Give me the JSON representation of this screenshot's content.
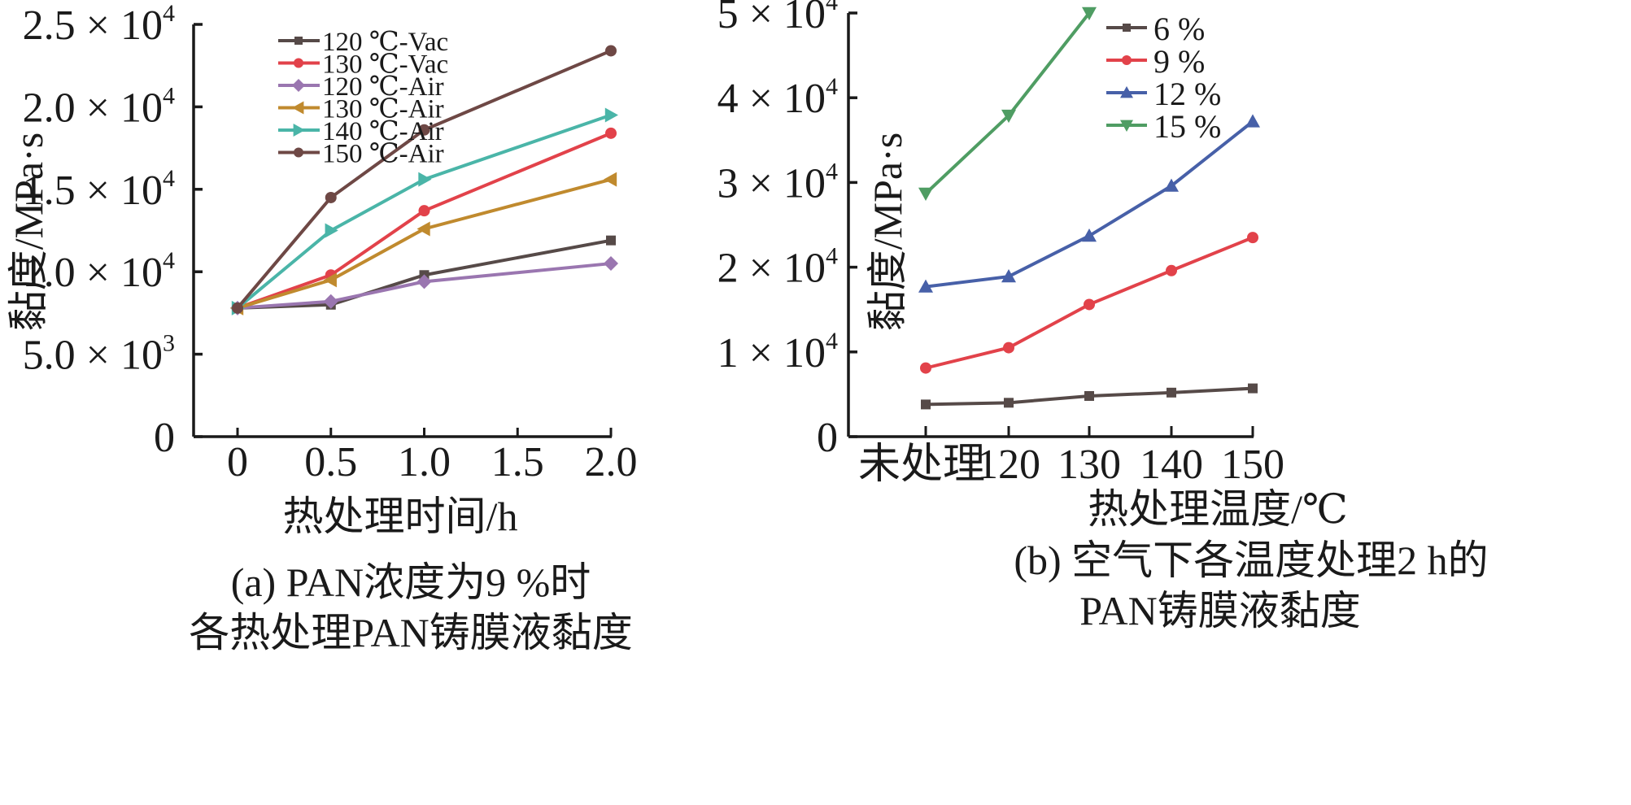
{
  "chart_data": [
    {
      "type": "line",
      "panel": "a",
      "xlabel": "热处理时间/h",
      "ylabel": "黏度/MPa·s",
      "caption": [
        "(a) PAN浓度为9 %时",
        "各热处理PAN铸膜液黏度"
      ],
      "xlim": [
        -0.12,
        2.0
      ],
      "ylim": [
        0,
        25000
      ],
      "x_ticks": [
        0,
        0.5,
        1.0,
        1.5,
        2.0
      ],
      "x_tick_labels": [
        "0",
        "0.5",
        "1.0",
        "1.5",
        "2.0"
      ],
      "y_ticks": [
        0,
        5000,
        10000,
        15000,
        20000,
        25000
      ],
      "y_tick_labels": [
        {
          "mant": "0",
          "exp": ""
        },
        {
          "mant": "5.0 × 10",
          "exp": "3"
        },
        {
          "mant": "1.0 × 10",
          "exp": "4"
        },
        {
          "mant": "1.5 × 10",
          "exp": "4"
        },
        {
          "mant": "2.0 × 10",
          "exp": "4"
        },
        {
          "mant": "2.5 × 10",
          "exp": "4"
        }
      ],
      "grid": false,
      "legend_position": "top-left",
      "x": [
        0,
        0.5,
        1.0,
        2.0
      ],
      "series": [
        {
          "name": "120 ℃-Vac",
          "color": "#564a48",
          "marker": "square",
          "values": [
            7800,
            8000,
            9800,
            11900
          ]
        },
        {
          "name": "130 ℃-Vac",
          "color": "#e2424a",
          "marker": "circle",
          "values": [
            7800,
            9800,
            13700,
            18400
          ]
        },
        {
          "name": "120 ℃-Air",
          "color": "#9a76b0",
          "marker": "diamond",
          "values": [
            7800,
            8200,
            9400,
            10500
          ]
        },
        {
          "name": "130 ℃-Air",
          "color": "#c08a2e",
          "marker": "tri-left",
          "values": [
            7800,
            9500,
            12600,
            15600
          ]
        },
        {
          "name": "140 ℃-Air",
          "color": "#4ab5a8",
          "marker": "tri-right",
          "values": [
            7800,
            12500,
            15600,
            19500
          ]
        },
        {
          "name": "150 ℃-Air",
          "color": "#6e4845",
          "marker": "circle",
          "values": [
            7800,
            14500,
            18600,
            23400
          ]
        }
      ]
    },
    {
      "type": "line",
      "panel": "b",
      "xlabel": "热处理温度/℃",
      "ylabel": "黏度/MPa·s",
      "caption": [
        "(b) 空气下各温度处理2 h的",
        "PAN铸膜液黏度"
      ],
      "categories": [
        "未处理",
        "120",
        "130",
        "140",
        "150"
      ],
      "ylim": [
        0,
        50000
      ],
      "y_ticks": [
        0,
        10000,
        20000,
        30000,
        40000,
        50000
      ],
      "y_tick_labels": [
        {
          "mant": "0",
          "exp": ""
        },
        {
          "mant": "1 × 10",
          "exp": "4"
        },
        {
          "mant": "2 × 10",
          "exp": "4"
        },
        {
          "mant": "3 × 10",
          "exp": "4"
        },
        {
          "mant": "4 × 10",
          "exp": "4"
        },
        {
          "mant": "5 × 10",
          "exp": "4"
        }
      ],
      "grid": false,
      "legend_position": "top-left",
      "series": [
        {
          "name": "6 %",
          "color": "#564a48",
          "marker": "square",
          "values": [
            3800,
            4000,
            4800,
            5200,
            5700
          ]
        },
        {
          "name": "9 %",
          "color": "#e2424a",
          "marker": "circle",
          "values": [
            8100,
            10500,
            15600,
            19600,
            23500
          ]
        },
        {
          "name": "12 %",
          "color": "#4760a8",
          "marker": "tri-up",
          "values": [
            17700,
            18900,
            23700,
            29600,
            37200
          ]
        },
        {
          "name": "15 %",
          "color": "#4f9d63",
          "marker": "tri-down",
          "values": [
            28700,
            37900,
            50000,
            null,
            null
          ]
        }
      ]
    }
  ]
}
